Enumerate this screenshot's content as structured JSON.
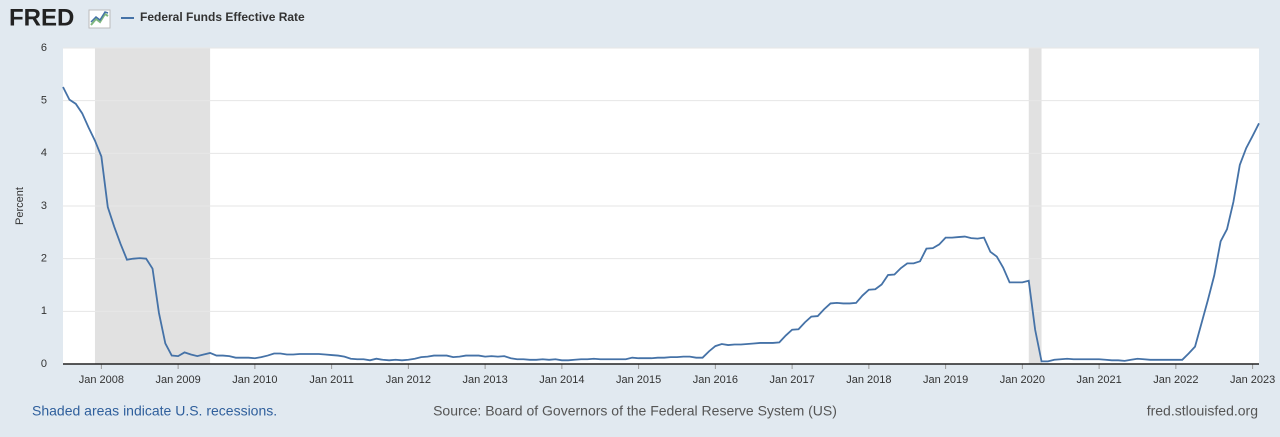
{
  "logo": "FRED",
  "chart_data": {
    "type": "line",
    "y_label": "Percent",
    "series": [
      {
        "name": "Federal Funds Effective Rate",
        "color": "#4572a7",
        "values": [
          5.26,
          5.02,
          4.94,
          4.76,
          4.49,
          4.24,
          3.94,
          2.98,
          2.61,
          2.28,
          1.98,
          2.0,
          2.01,
          2.0,
          1.81,
          0.97,
          0.39,
          0.16,
          0.15,
          0.22,
          0.18,
          0.15,
          0.18,
          0.21,
          0.16,
          0.16,
          0.15,
          0.12,
          0.12,
          0.12,
          0.11,
          0.13,
          0.16,
          0.2,
          0.2,
          0.18,
          0.18,
          0.19,
          0.19,
          0.19,
          0.19,
          0.18,
          0.17,
          0.16,
          0.14,
          0.1,
          0.09,
          0.09,
          0.07,
          0.1,
          0.08,
          0.07,
          0.08,
          0.07,
          0.08,
          0.1,
          0.13,
          0.14,
          0.16,
          0.16,
          0.16,
          0.13,
          0.14,
          0.16,
          0.16,
          0.16,
          0.14,
          0.15,
          0.14,
          0.15,
          0.11,
          0.09,
          0.09,
          0.08,
          0.08,
          0.09,
          0.08,
          0.09,
          0.07,
          0.07,
          0.08,
          0.09,
          0.09,
          0.1,
          0.09,
          0.09,
          0.09,
          0.09,
          0.09,
          0.12,
          0.11,
          0.11,
          0.11,
          0.12,
          0.12,
          0.13,
          0.13,
          0.14,
          0.14,
          0.12,
          0.12,
          0.24,
          0.34,
          0.38,
          0.36,
          0.37,
          0.37,
          0.38,
          0.39,
          0.4,
          0.4,
          0.4,
          0.41,
          0.54,
          0.65,
          0.66,
          0.79,
          0.9,
          0.91,
          1.04,
          1.15,
          1.16,
          1.15,
          1.15,
          1.16,
          1.3,
          1.41,
          1.42,
          1.51,
          1.69,
          1.7,
          1.82,
          1.91,
          1.91,
          1.95,
          2.19,
          2.2,
          2.27,
          2.4,
          2.4,
          2.41,
          2.42,
          2.39,
          2.38,
          2.4,
          2.13,
          2.04,
          1.83,
          1.55,
          1.55,
          1.55,
          1.58,
          0.65,
          0.05,
          0.05,
          0.08,
          0.09,
          0.1,
          0.09,
          0.09,
          0.09,
          0.09,
          0.09,
          0.08,
          0.07,
          0.07,
          0.06,
          0.08,
          0.1,
          0.09,
          0.08,
          0.08,
          0.08,
          0.08,
          0.08,
          0.08,
          0.2,
          0.33,
          0.77,
          1.21,
          1.68,
          2.33,
          2.56,
          3.08,
          3.78,
          4.1,
          4.33,
          4.57
        ]
      }
    ],
    "x": [
      "2007-07",
      "2007-08",
      "2007-09",
      "2007-10",
      "2007-11",
      "2007-12",
      "2008-01",
      "2008-02",
      "2008-03",
      "2008-04",
      "2008-05",
      "2008-06",
      "2008-07",
      "2008-08",
      "2008-09",
      "2008-10",
      "2008-11",
      "2008-12",
      "2009-01",
      "2009-02",
      "2009-03",
      "2009-04",
      "2009-05",
      "2009-06",
      "2009-07",
      "2009-08",
      "2009-09",
      "2009-10",
      "2009-11",
      "2009-12",
      "2010-01",
      "2010-02",
      "2010-03",
      "2010-04",
      "2010-05",
      "2010-06",
      "2010-07",
      "2010-08",
      "2010-09",
      "2010-10",
      "2010-11",
      "2010-12",
      "2011-01",
      "2011-02",
      "2011-03",
      "2011-04",
      "2011-05",
      "2011-06",
      "2011-07",
      "2011-08",
      "2011-09",
      "2011-10",
      "2011-11",
      "2011-12",
      "2012-01",
      "2012-02",
      "2012-03",
      "2012-04",
      "2012-05",
      "2012-06",
      "2012-07",
      "2012-08",
      "2012-09",
      "2012-10",
      "2012-11",
      "2012-12",
      "2013-01",
      "2013-02",
      "2013-03",
      "2013-04",
      "2013-05",
      "2013-06",
      "2013-07",
      "2013-08",
      "2013-09",
      "2013-10",
      "2013-11",
      "2013-12",
      "2014-01",
      "2014-02",
      "2014-03",
      "2014-04",
      "2014-05",
      "2014-06",
      "2014-07",
      "2014-08",
      "2014-09",
      "2014-10",
      "2014-11",
      "2014-12",
      "2015-01",
      "2015-02",
      "2015-03",
      "2015-04",
      "2015-05",
      "2015-06",
      "2015-07",
      "2015-08",
      "2015-09",
      "2015-10",
      "2015-11",
      "2015-12",
      "2016-01",
      "2016-02",
      "2016-03",
      "2016-04",
      "2016-05",
      "2016-06",
      "2016-07",
      "2016-08",
      "2016-09",
      "2016-10",
      "2016-11",
      "2016-12",
      "2017-01",
      "2017-02",
      "2017-03",
      "2017-04",
      "2017-05",
      "2017-06",
      "2017-07",
      "2017-08",
      "2017-09",
      "2017-10",
      "2017-11",
      "2017-12",
      "2018-01",
      "2018-02",
      "2018-03",
      "2018-04",
      "2018-05",
      "2018-06",
      "2018-07",
      "2018-08",
      "2018-09",
      "2018-10",
      "2018-11",
      "2018-12",
      "2019-01",
      "2019-02",
      "2019-03",
      "2019-04",
      "2019-05",
      "2019-06",
      "2019-07",
      "2019-08",
      "2019-09",
      "2019-10",
      "2019-11",
      "2019-12",
      "2020-01",
      "2020-02",
      "2020-03",
      "2020-04",
      "2020-05",
      "2020-06",
      "2020-07",
      "2020-08",
      "2020-09",
      "2020-10",
      "2020-11",
      "2020-12",
      "2021-01",
      "2021-02",
      "2021-03",
      "2021-04",
      "2021-05",
      "2021-06",
      "2021-07",
      "2021-08",
      "2021-09",
      "2021-10",
      "2021-11",
      "2021-12",
      "2022-01",
      "2022-02",
      "2022-03",
      "2022-04",
      "2022-05",
      "2022-06",
      "2022-07",
      "2022-08",
      "2022-09",
      "2022-10",
      "2022-11",
      "2022-12",
      "2023-01",
      "2023-02"
    ],
    "xlim": [
      "2007-07",
      "2023-02"
    ],
    "xticks": [
      {
        "value": "2008-01",
        "label": "Jan 2008"
      },
      {
        "value": "2009-01",
        "label": "Jan 2009"
      },
      {
        "value": "2010-01",
        "label": "Jan 2010"
      },
      {
        "value": "2011-01",
        "label": "Jan 2011"
      },
      {
        "value": "2012-01",
        "label": "Jan 2012"
      },
      {
        "value": "2013-01",
        "label": "Jan 2013"
      },
      {
        "value": "2014-01",
        "label": "Jan 2014"
      },
      {
        "value": "2015-01",
        "label": "Jan 2015"
      },
      {
        "value": "2016-01",
        "label": "Jan 2016"
      },
      {
        "value": "2017-01",
        "label": "Jan 2017"
      },
      {
        "value": "2018-01",
        "label": "Jan 2018"
      },
      {
        "value": "2019-01",
        "label": "Jan 2019"
      },
      {
        "value": "2020-01",
        "label": "Jan 2020"
      },
      {
        "value": "2021-01",
        "label": "Jan 2021"
      },
      {
        "value": "2022-01",
        "label": "Jan 2022"
      },
      {
        "value": "2023-01",
        "label": "Jan 2023"
      }
    ],
    "ylim": [
      0,
      6
    ],
    "yticks": [
      0,
      1,
      2,
      3,
      4,
      5,
      6
    ],
    "grid": true,
    "recessions": [
      [
        "2007-12",
        "2009-06"
      ],
      [
        "2020-02",
        "2020-04"
      ]
    ],
    "recession_note": "Shaded areas indicate U.S. recessions.",
    "source": "Source: Board of Governors of the Federal Reserve System (US)",
    "site": "fred.stlouisfed.org"
  }
}
